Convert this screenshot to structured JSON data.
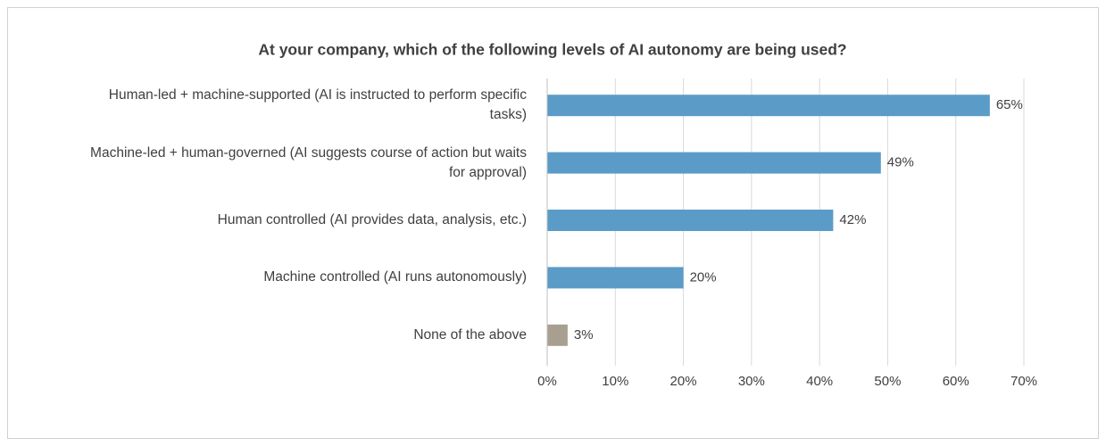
{
  "chart_data": {
    "type": "bar",
    "orientation": "horizontal",
    "title": "At your company, which of the following levels of AI autonomy are being used?",
    "categories": [
      "Human-led + machine-supported (AI is instructed to perform specific tasks)",
      "Machine-led + human-governed (AI suggests course of action but waits for approval)",
      "Human controlled (AI provides data, analysis, etc.)",
      "Machine controlled (AI runs autonomously)",
      "None of the above"
    ],
    "values": [
      65,
      49,
      42,
      20,
      3
    ],
    "value_labels": [
      "65%",
      "49%",
      "42%",
      "20%",
      "3%"
    ],
    "colors": [
      "#5b9bc8",
      "#5b9bc8",
      "#5b9bc8",
      "#5b9bc8",
      "#a89f91"
    ],
    "xlim": [
      0,
      70
    ],
    "xticks": [
      {
        "value": 0,
        "label": "0%"
      },
      {
        "value": 10,
        "label": "10%"
      },
      {
        "value": 20,
        "label": "20%"
      },
      {
        "value": 30,
        "label": "30%"
      },
      {
        "value": 40,
        "label": "40%"
      },
      {
        "value": 50,
        "label": "50%"
      },
      {
        "value": 60,
        "label": "60%"
      },
      {
        "value": 70,
        "label": "70%"
      }
    ],
    "grid": true
  }
}
